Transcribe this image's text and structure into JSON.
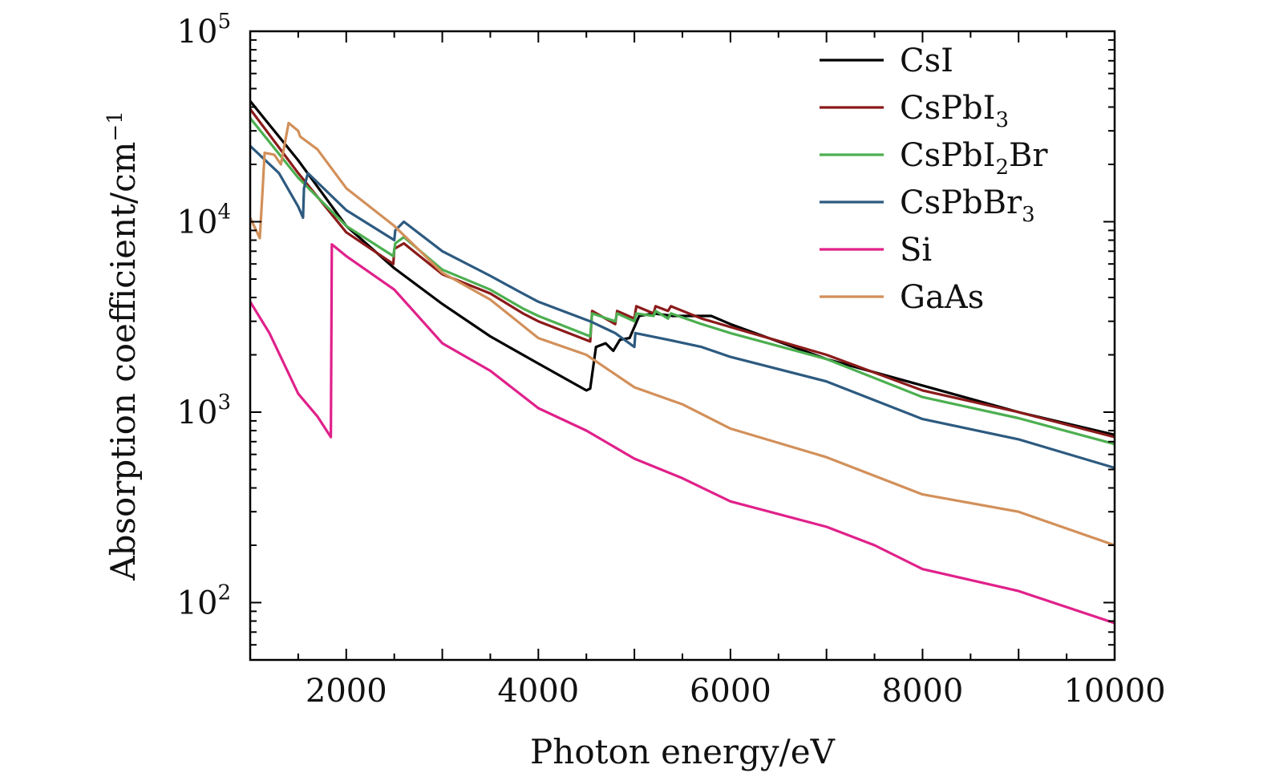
{
  "chart_data": {
    "type": "line",
    "xlabel": "Photon energy/eV",
    "ylabel": "Absorption coefficient/cm",
    "ylabel_exponent": "−1",
    "xlim": [
      1000,
      10000
    ],
    "ylim": [
      50,
      100000
    ],
    "yscale": "log",
    "x_ticks": [
      2000,
      4000,
      6000,
      8000,
      10000
    ],
    "y_ticks": [
      {
        "value": 100,
        "base": "10",
        "exp": "2"
      },
      {
        "value": 1000,
        "base": "10",
        "exp": "3"
      },
      {
        "value": 10000,
        "base": "10",
        "exp": "4"
      },
      {
        "value": 100000,
        "base": "10",
        "exp": "5"
      }
    ],
    "legend_position": "top-right",
    "grid": false,
    "series": [
      {
        "label": {
          "main": "CsI",
          "sub": "",
          "tail": ""
        },
        "color": "#000000",
        "points": [
          [
            1000,
            43000
          ],
          [
            1500,
            21000
          ],
          [
            2000,
            9500
          ],
          [
            2500,
            5700
          ],
          [
            3000,
            3700
          ],
          [
            3500,
            2500
          ],
          [
            4000,
            1800
          ],
          [
            4500,
            1300
          ],
          [
            4540,
            1330
          ],
          [
            4600,
            2200
          ],
          [
            4700,
            2300
          ],
          [
            4780,
            2100
          ],
          [
            4850,
            2400
          ],
          [
            4950,
            2450
          ],
          [
            5000,
            2800
          ],
          [
            5050,
            3200
          ],
          [
            5200,
            3300
          ],
          [
            5400,
            3200
          ],
          [
            5800,
            3200
          ],
          [
            6000,
            2900
          ],
          [
            7000,
            1900
          ],
          [
            8000,
            1380
          ],
          [
            9000,
            1000
          ],
          [
            10000,
            760
          ]
        ]
      },
      {
        "label": {
          "main": "CsPbI",
          "sub": "3",
          "tail": ""
        },
        "color": "#8b1a1a",
        "points": [
          [
            1000,
            39000
          ],
          [
            1500,
            18000
          ],
          [
            2000,
            8800
          ],
          [
            2490,
            6000
          ],
          [
            2500,
            7200
          ],
          [
            2600,
            7700
          ],
          [
            3000,
            5300
          ],
          [
            3500,
            4200
          ],
          [
            3840,
            3300
          ],
          [
            4000,
            3000
          ],
          [
            4540,
            2350
          ],
          [
            4560,
            3400
          ],
          [
            4800,
            2900
          ],
          [
            4820,
            3400
          ],
          [
            5000,
            3100
          ],
          [
            5020,
            3600
          ],
          [
            5200,
            3300
          ],
          [
            5220,
            3600
          ],
          [
            5350,
            3400
          ],
          [
            5380,
            3600
          ],
          [
            5700,
            3100
          ],
          [
            6000,
            2800
          ],
          [
            7000,
            2000
          ],
          [
            8000,
            1300
          ],
          [
            9000,
            1000
          ],
          [
            10000,
            740
          ]
        ]
      },
      {
        "label": {
          "main": "CsPbI",
          "sub": "2",
          "tail": "Br"
        },
        "color": "#4caf50",
        "points": [
          [
            1000,
            35000
          ],
          [
            1500,
            17000
          ],
          [
            2000,
            9500
          ],
          [
            2490,
            6600
          ],
          [
            2510,
            7700
          ],
          [
            2600,
            8300
          ],
          [
            3000,
            5600
          ],
          [
            3500,
            4400
          ],
          [
            3840,
            3500
          ],
          [
            4000,
            3200
          ],
          [
            4540,
            2500
          ],
          [
            4560,
            3300
          ],
          [
            4800,
            3000
          ],
          [
            4820,
            3300
          ],
          [
            5000,
            3000
          ],
          [
            5020,
            3300
          ],
          [
            5200,
            3200
          ],
          [
            5220,
            3400
          ],
          [
            5350,
            3100
          ],
          [
            5380,
            3300
          ],
          [
            5700,
            2900
          ],
          [
            6000,
            2600
          ],
          [
            7000,
            1900
          ],
          [
            8000,
            1200
          ],
          [
            9000,
            930
          ],
          [
            10000,
            680
          ]
        ]
      },
      {
        "label": {
          "main": "CsPbBr",
          "sub": "3",
          "tail": ""
        },
        "color": "#2d5a80",
        "points": [
          [
            1000,
            25000
          ],
          [
            1300,
            18000
          ],
          [
            1500,
            12000
          ],
          [
            1550,
            10500
          ],
          [
            1560,
            15000
          ],
          [
            1600,
            18000
          ],
          [
            2000,
            11500
          ],
          [
            2500,
            8000
          ],
          [
            2510,
            9000
          ],
          [
            2600,
            10000
          ],
          [
            3000,
            7000
          ],
          [
            3500,
            5200
          ],
          [
            3800,
            4300
          ],
          [
            4000,
            3800
          ],
          [
            4540,
            3000
          ],
          [
            4800,
            2600
          ],
          [
            5000,
            2200
          ],
          [
            5010,
            2600
          ],
          [
            5350,
            2400
          ],
          [
            5700,
            2200
          ],
          [
            6000,
            1950
          ],
          [
            7000,
            1450
          ],
          [
            8000,
            920
          ],
          [
            9000,
            720
          ],
          [
            10000,
            510
          ]
        ]
      },
      {
        "label": {
          "main": "Si",
          "sub": "",
          "tail": ""
        },
        "color": "#e0218a",
        "points": [
          [
            1000,
            3800
          ],
          [
            1200,
            2600
          ],
          [
            1500,
            1250
          ],
          [
            1700,
            950
          ],
          [
            1840,
            740
          ],
          [
            1850,
            7600
          ],
          [
            2000,
            6600
          ],
          [
            2500,
            4400
          ],
          [
            3000,
            2300
          ],
          [
            3500,
            1650
          ],
          [
            4000,
            1050
          ],
          [
            4500,
            800
          ],
          [
            5000,
            570
          ],
          [
            5500,
            450
          ],
          [
            6000,
            340
          ],
          [
            7000,
            250
          ],
          [
            7500,
            200
          ],
          [
            8000,
            150
          ],
          [
            9000,
            115
          ],
          [
            10000,
            78
          ]
        ]
      },
      {
        "label": {
          "main": "GaAs",
          "sub": "",
          "tail": ""
        },
        "color": "#d2905a",
        "points": [
          [
            1000,
            10500
          ],
          [
            1100,
            8200
          ],
          [
            1130,
            15000
          ],
          [
            1150,
            23000
          ],
          [
            1250,
            22500
          ],
          [
            1320,
            20000
          ],
          [
            1400,
            33000
          ],
          [
            1500,
            30000
          ],
          [
            1520,
            28000
          ],
          [
            1700,
            24000
          ],
          [
            2000,
            15000
          ],
          [
            2500,
            9500
          ],
          [
            3000,
            5400
          ],
          [
            3500,
            3900
          ],
          [
            4000,
            2450
          ],
          [
            4500,
            2000
          ],
          [
            5000,
            1350
          ],
          [
            5500,
            1100
          ],
          [
            6000,
            820
          ],
          [
            7000,
            580
          ],
          [
            8000,
            370
          ],
          [
            9000,
            300
          ],
          [
            10000,
            200
          ]
        ]
      }
    ]
  }
}
